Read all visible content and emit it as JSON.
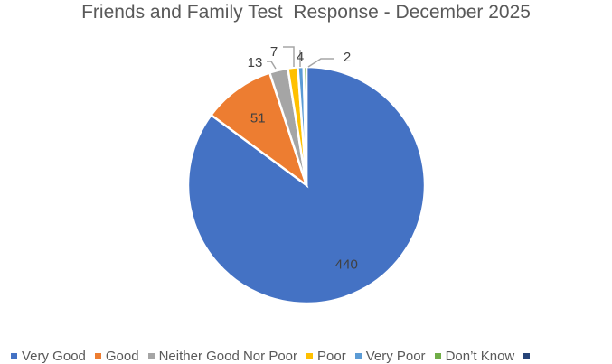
{
  "chart_data": {
    "type": "pie",
    "title": "Friends and Family Test  Response - December 2025",
    "categories": [
      "Very Good",
      "Good",
      "Neither Good Nor Poor",
      "Poor",
      "Very Poor",
      "Don’t Know"
    ],
    "values": [
      440,
      51,
      13,
      7,
      4,
      2
    ],
    "colors": [
      "#4472C4",
      "#ED7D31",
      "#A5A5A5",
      "#FFC000",
      "#5B9BD5",
      "#70AD47"
    ],
    "extra_legend_color": "#264478",
    "legend_position": "bottom",
    "start_angle": "top, clockwise"
  }
}
